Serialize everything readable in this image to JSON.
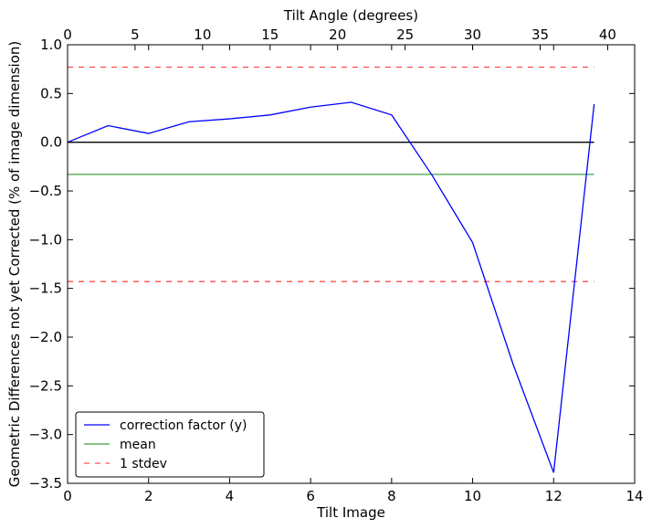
{
  "chart_data": {
    "type": "line",
    "xlabel": "Tilt Image",
    "ylabel": "Geometric Differences not yet Corrected (% of image dimension)",
    "x2label": "Tilt Angle (degrees)",
    "xlim": [
      0,
      14
    ],
    "ylim": [
      -3.5,
      1.0
    ],
    "x2lim": [
      0,
      42
    ],
    "xticks": [
      0,
      2,
      4,
      6,
      8,
      10,
      12,
      14
    ],
    "yticks": [
      -3.5,
      -3.0,
      -2.5,
      -2.0,
      -1.5,
      -1.0,
      -0.5,
      0.0,
      0.5,
      1.0
    ],
    "x2ticks": [
      0,
      5,
      10,
      15,
      20,
      25,
      30,
      35,
      40
    ],
    "xtick_labels": [
      "0",
      "2",
      "4",
      "6",
      "8",
      "10",
      "12",
      "14"
    ],
    "ytick_labels": [
      "−3.5",
      "−3.0",
      "−2.5",
      "−2.0",
      "−1.5",
      "−1.0",
      "−0.5",
      "0.0",
      "0.5",
      "1.0"
    ],
    "x2tick_labels": [
      "0",
      "5",
      "10",
      "15",
      "20",
      "25",
      "30",
      "35",
      "40"
    ],
    "grid": false,
    "legend_position": "bottom-left",
    "series": [
      {
        "name": "correction factor (y)",
        "color": "#0000ff",
        "style": "solid",
        "x": [
          0,
          1,
          2,
          3,
          4,
          5,
          6,
          7,
          8,
          9,
          10,
          11,
          12,
          13
        ],
        "y": [
          0.0,
          0.17,
          0.09,
          0.21,
          0.24,
          0.28,
          0.36,
          0.41,
          0.28,
          -0.34,
          -1.03,
          -2.28,
          -3.39,
          0.39
        ]
      },
      {
        "name": "mean",
        "color": "#008000",
        "style": "solid",
        "x": [
          0,
          13
        ],
        "y": [
          -0.33,
          -0.33
        ]
      },
      {
        "name": "1 stdev",
        "color": "#ff0000",
        "style": "dashed",
        "x": [
          0,
          13
        ],
        "y": [
          0.77,
          0.77
        ]
      },
      {
        "name": "",
        "color": "#ff0000",
        "style": "dashed",
        "x": [
          0,
          13
        ],
        "y": [
          -1.43,
          -1.43
        ]
      },
      {
        "name": "",
        "color": "#000000",
        "style": "solid",
        "x": [
          0,
          13
        ],
        "y": [
          0.0,
          0.0
        ]
      }
    ]
  }
}
